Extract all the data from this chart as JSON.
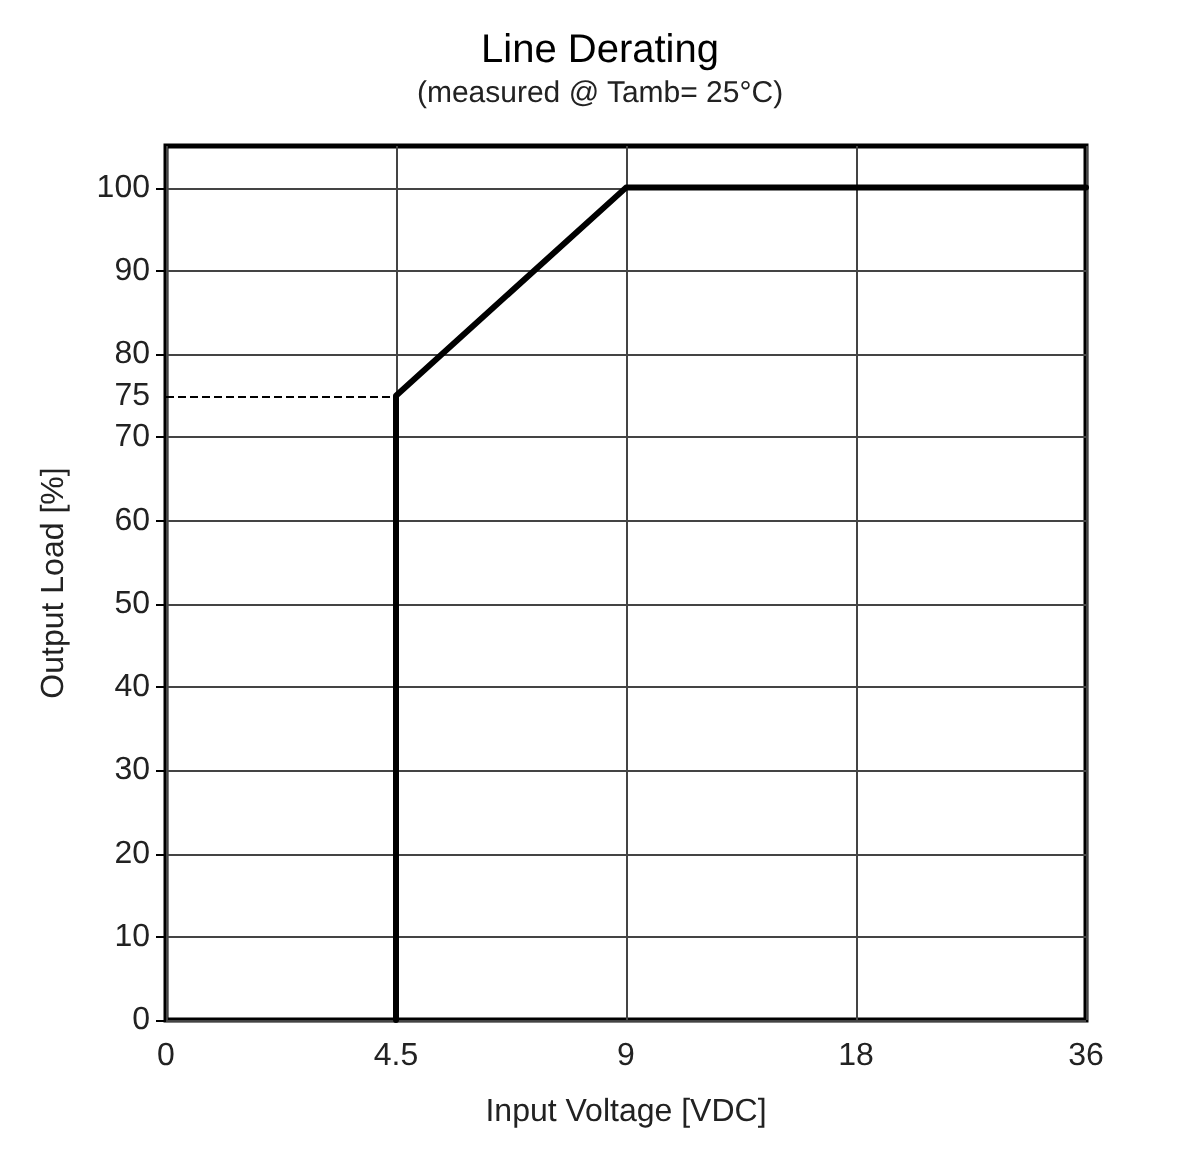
{
  "chart_data": {
    "type": "line",
    "title": "Line Derating",
    "subtitle": "(measured @ Tamb= 25°C)",
    "xlabel": "Input Voltage [VDC]",
    "ylabel": "Output Load [%]",
    "categories": [
      "0",
      "4.5",
      "9",
      "18",
      "36"
    ],
    "series": [
      {
        "color": "#000000",
        "x": [
          "4.5",
          "4.5",
          "9",
          "36"
        ],
        "values": [
          0,
          75,
          100,
          100
        ]
      }
    ],
    "ylim": [
      0,
      105
    ],
    "yticks": [
      0,
      10,
      20,
      30,
      40,
      50,
      60,
      70,
      80,
      90,
      100
    ],
    "grid": true,
    "marker": "none",
    "line_style": "solid",
    "ref_lines": [
      {
        "axis": "y",
        "value": 75,
        "label": "75",
        "line_style": "dashed",
        "color": "#000000"
      }
    ]
  }
}
